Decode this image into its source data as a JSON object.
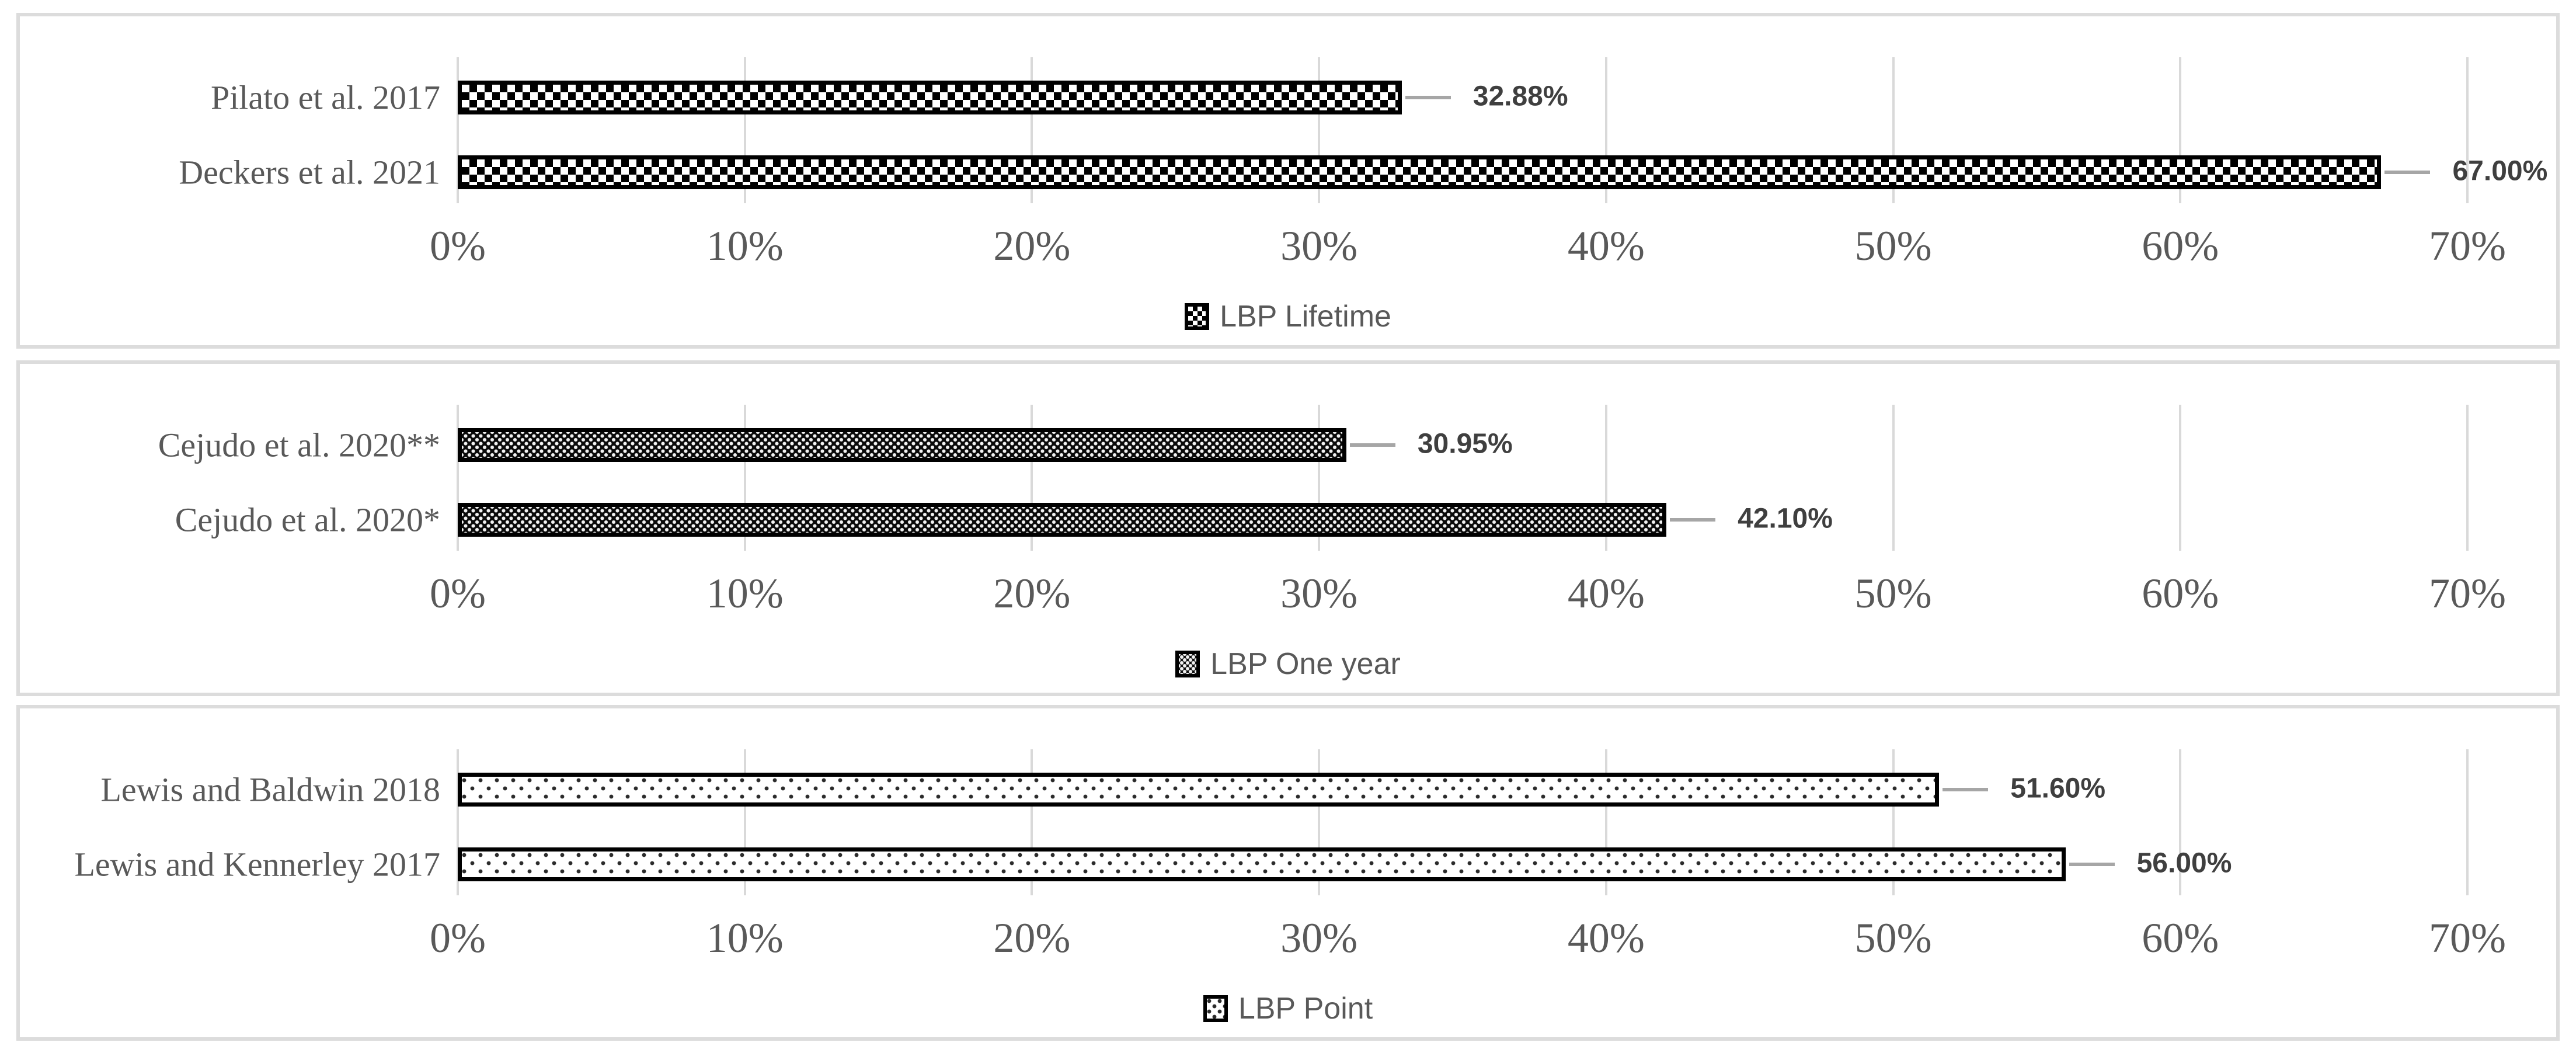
{
  "figure": {
    "background": "#ffffff",
    "panel_border_color": "#dcdcdc",
    "gridline_color": "#d9d9d9",
    "leader_line_color": "#a6a6a6",
    "label_text_color": "#595959",
    "value_text_color": "#3f3f3f",
    "bar_color": "#000000"
  },
  "chart_data": [
    {
      "type": "bar",
      "orientation": "horizontal",
      "legend": "LBP Lifetime",
      "legend_position": "bottom",
      "pattern": "checker",
      "categories": [
        "Pilato et al. 2017",
        "Deckers et al. 2021"
      ],
      "values": [
        32.88,
        67.0
      ],
      "value_labels": [
        "32.88%",
        "67.00%"
      ],
      "xticks": [
        "0%",
        "10%",
        "20%",
        "30%",
        "40%",
        "50%",
        "60%",
        "70%"
      ],
      "xlim": [
        0,
        70
      ],
      "grid": true,
      "xlabel": "",
      "ylabel": ""
    },
    {
      "type": "bar",
      "orientation": "horizontal",
      "legend": "LBP One year",
      "legend_position": "bottom",
      "pattern": "darkdots",
      "categories": [
        "Cejudo et al. 2020**",
        "Cejudo et al. 2020*"
      ],
      "values": [
        30.95,
        42.1
      ],
      "value_labels": [
        "30.95%",
        "42.10%"
      ],
      "xticks": [
        "0%",
        "10%",
        "20%",
        "30%",
        "40%",
        "50%",
        "60%",
        "70%"
      ],
      "xlim": [
        0,
        70
      ],
      "grid": true,
      "xlabel": "",
      "ylabel": ""
    },
    {
      "type": "bar",
      "orientation": "horizontal",
      "legend": "LBP Point",
      "legend_position": "bottom",
      "pattern": "lightdots",
      "categories": [
        "Lewis and Baldwin 2018",
        "Lewis and Kennerley 2017"
      ],
      "values": [
        51.6,
        56.0
      ],
      "value_labels": [
        "51.60%",
        "56.00%"
      ],
      "xticks": [
        "0%",
        "10%",
        "20%",
        "30%",
        "40%",
        "50%",
        "60%",
        "70%"
      ],
      "xlim": [
        0,
        70
      ],
      "grid": true,
      "xlabel": "",
      "ylabel": ""
    }
  ]
}
